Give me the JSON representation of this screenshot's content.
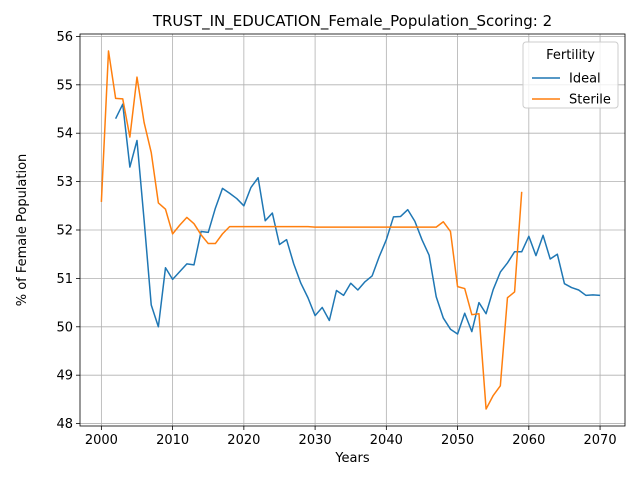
{
  "chart_data": {
    "type": "line",
    "title": "TRUST_IN_EDUCATION_Female_Population_Scoring: 2",
    "xlabel": "Years",
    "ylabel": "% of Female Population",
    "xlim": [
      1997,
      2073.5
    ],
    "ylim": [
      47.95,
      56.05
    ],
    "xticks": [
      2000,
      2010,
      2020,
      2030,
      2040,
      2050,
      2060,
      2070
    ],
    "yticks": [
      48,
      49,
      50,
      51,
      52,
      53,
      54,
      55,
      56
    ],
    "grid": true,
    "legend": {
      "title": "Fertility",
      "placement": "top-right"
    },
    "series": [
      {
        "name": "Ideal",
        "color": "#1f77b4",
        "x": [
          2002,
          2003,
          2004,
          2005,
          2006,
          2007,
          2008,
          2009,
          2010,
          2011,
          2012,
          2013,
          2014,
          2015,
          2016,
          2017,
          2018,
          2019,
          2020,
          2021,
          2022,
          2023,
          2024,
          2025,
          2026,
          2027,
          2028,
          2029,
          2030,
          2031,
          2032,
          2033,
          2034,
          2035,
          2036,
          2037,
          2038,
          2039,
          2040,
          2041,
          2042,
          2043,
          2044,
          2045,
          2046,
          2047,
          2048,
          2049,
          2050,
          2051,
          2052,
          2053,
          2054,
          2055,
          2056,
          2057,
          2058,
          2059,
          2060,
          2061,
          2062,
          2063,
          2064,
          2065,
          2066,
          2067,
          2068,
          2069,
          2070
        ],
        "values": [
          54.3,
          54.6,
          53.3,
          53.85,
          52.2,
          50.45,
          50.0,
          51.22,
          50.98,
          51.14,
          51.3,
          51.28,
          51.97,
          51.95,
          52.45,
          52.86,
          52.76,
          52.65,
          52.5,
          52.88,
          53.08,
          52.19,
          52.35,
          51.7,
          51.8,
          51.3,
          50.9,
          50.6,
          50.23,
          50.4,
          50.13,
          50.75,
          50.65,
          50.9,
          50.76,
          50.93,
          51.05,
          51.45,
          51.8,
          52.27,
          52.28,
          52.42,
          52.18,
          51.8,
          51.48,
          50.62,
          50.18,
          49.95,
          49.85,
          50.28,
          49.9,
          50.5,
          50.27,
          50.77,
          51.13,
          51.32,
          51.55,
          51.55,
          51.87,
          51.47,
          51.89,
          51.4,
          51.5,
          50.89,
          50.81,
          50.76,
          50.65,
          50.66,
          50.65
        ]
      },
      {
        "name": "Sterile",
        "color": "#ff7f0e",
        "x": [
          2000,
          2001,
          2002,
          2003,
          2004,
          2005,
          2006,
          2007,
          2008,
          2009,
          2010,
          2011,
          2012,
          2013,
          2014,
          2015,
          2016,
          2017,
          2018,
          2019,
          2020,
          2021,
          2022,
          2023,
          2024,
          2025,
          2026,
          2027,
          2028,
          2029,
          2030,
          2031,
          2032,
          2033,
          2034,
          2035,
          2036,
          2037,
          2038,
          2039,
          2040,
          2041,
          2042,
          2043,
          2044,
          2045,
          2046,
          2047,
          2048,
          2049,
          2050,
          2051,
          2052,
          2053,
          2054,
          2055,
          2056,
          2057,
          2058,
          2059
        ],
        "values": [
          52.58,
          55.7,
          54.72,
          54.71,
          53.92,
          55.16,
          54.22,
          53.6,
          52.56,
          52.43,
          51.92,
          52.1,
          52.26,
          52.13,
          51.9,
          51.72,
          51.72,
          51.92,
          52.07,
          52.07,
          52.07,
          52.07,
          52.07,
          52.07,
          52.07,
          52.07,
          52.07,
          52.07,
          52.07,
          52.07,
          52.06,
          52.06,
          52.06,
          52.06,
          52.06,
          52.06,
          52.06,
          52.06,
          52.06,
          52.06,
          52.06,
          52.06,
          52.06,
          52.06,
          52.06,
          52.06,
          52.06,
          52.06,
          52.17,
          51.97,
          50.83,
          50.79,
          50.25,
          50.27,
          48.3,
          48.58,
          48.78,
          50.6,
          50.72,
          52.79
        ]
      }
    ]
  }
}
